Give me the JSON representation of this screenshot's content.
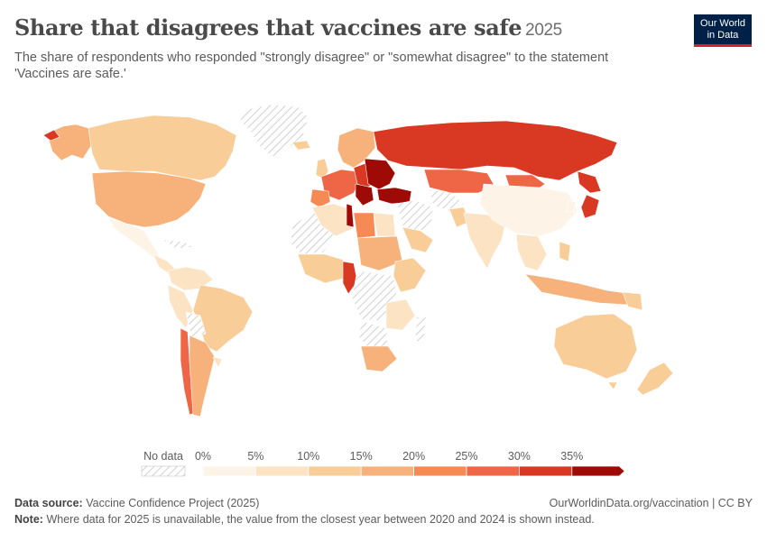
{
  "header": {
    "title": "Share that disagrees that vaccines are safe",
    "year": "2025",
    "subtitle": "The share of respondents who responded \"strongly disagree\" or \"somewhat disagree\" to the statement 'Vaccines are safe.'"
  },
  "logo": {
    "line1": "Our World",
    "line2": "in Data"
  },
  "legend": {
    "no_data_label": "No data",
    "ticks": [
      "0%",
      "5%",
      "10%",
      "15%",
      "20%",
      "25%",
      "30%",
      "35%"
    ],
    "colors": [
      "#fdf3e7",
      "#fbe3c4",
      "#f9cd98",
      "#f6b27a",
      "#f58a55",
      "#ee6645",
      "#d93823",
      "#9e0a05"
    ]
  },
  "footer": {
    "source_label": "Data source:",
    "source_text": "Vaccine Confidence Project (2025)",
    "url": "OurWorldinData.org/vaccination | CC BY",
    "note_label": "Note:",
    "note_text": "Where data for 2025 is unavailable, the value from the closest year between 2020 and 2024 is shown instead."
  }
}
